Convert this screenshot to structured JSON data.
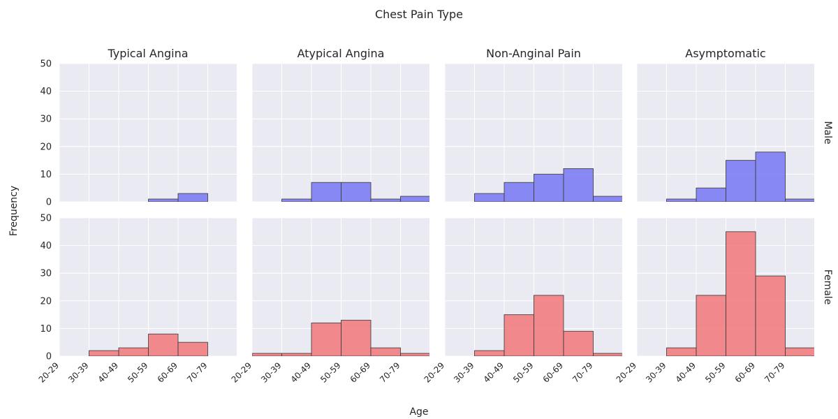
{
  "chart_data": {
    "type": "bar",
    "title": "Chest Pain Type",
    "xlabel": "Age",
    "ylabel": "Frequency",
    "categories": [
      "20-29",
      "30-39",
      "40-49",
      "50-59",
      "60-69",
      "70-79"
    ],
    "ylim": [
      0,
      50
    ],
    "yticks": [
      0,
      10,
      20,
      30,
      40,
      50
    ],
    "grid": true,
    "columns": [
      "Typical Angina",
      "Atypical Angina",
      "Non-Anginal Pain",
      "Asymptomatic"
    ],
    "rows": [
      {
        "name": "Male",
        "color": "#6b6bf5",
        "values": [
          [
            0,
            0,
            0,
            1,
            3,
            0
          ],
          [
            0,
            1,
            7,
            7,
            1,
            2
          ],
          [
            0,
            3,
            7,
            10,
            12,
            2
          ],
          [
            0,
            1,
            5,
            15,
            18,
            1
          ]
        ]
      },
      {
        "name": "Female",
        "color": "#f26b6e",
        "values": [
          [
            0,
            2,
            3,
            8,
            5,
            0
          ],
          [
            1,
            1,
            12,
            13,
            3,
            1
          ],
          [
            0,
            2,
            15,
            22,
            9,
            1
          ],
          [
            0,
            3,
            22,
            45,
            29,
            3
          ]
        ]
      }
    ]
  }
}
